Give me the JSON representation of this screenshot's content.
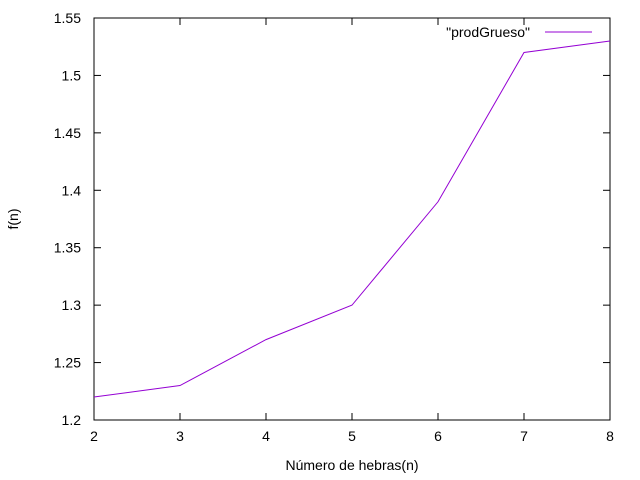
{
  "chart_data": {
    "type": "line",
    "title": "",
    "xlabel": "Número de hebras(n)",
    "ylabel": "f(n)",
    "xlim": [
      2,
      8
    ],
    "ylim": [
      1.2,
      1.55
    ],
    "xticks": [
      2,
      3,
      4,
      5,
      6,
      7,
      8
    ],
    "yticks": [
      1.2,
      1.25,
      1.3,
      1.35,
      1.4,
      1.45,
      1.5,
      1.55
    ],
    "xtick_labels": [
      "2",
      "3",
      "4",
      "5",
      "6",
      "7",
      "8"
    ],
    "ytick_labels": [
      "1.2",
      "1.25",
      "1.3",
      "1.35",
      "1.4",
      "1.45",
      "1.5",
      "1.55"
    ],
    "grid": false,
    "legend_position": "top-right",
    "series": [
      {
        "name": "\"prodGrueso\"",
        "color": "#9400d3",
        "x": [
          2,
          3,
          4,
          5,
          6,
          7,
          8
        ],
        "y": [
          1.22,
          1.23,
          1.27,
          1.3,
          1.39,
          1.52,
          1.53
        ]
      }
    ]
  }
}
